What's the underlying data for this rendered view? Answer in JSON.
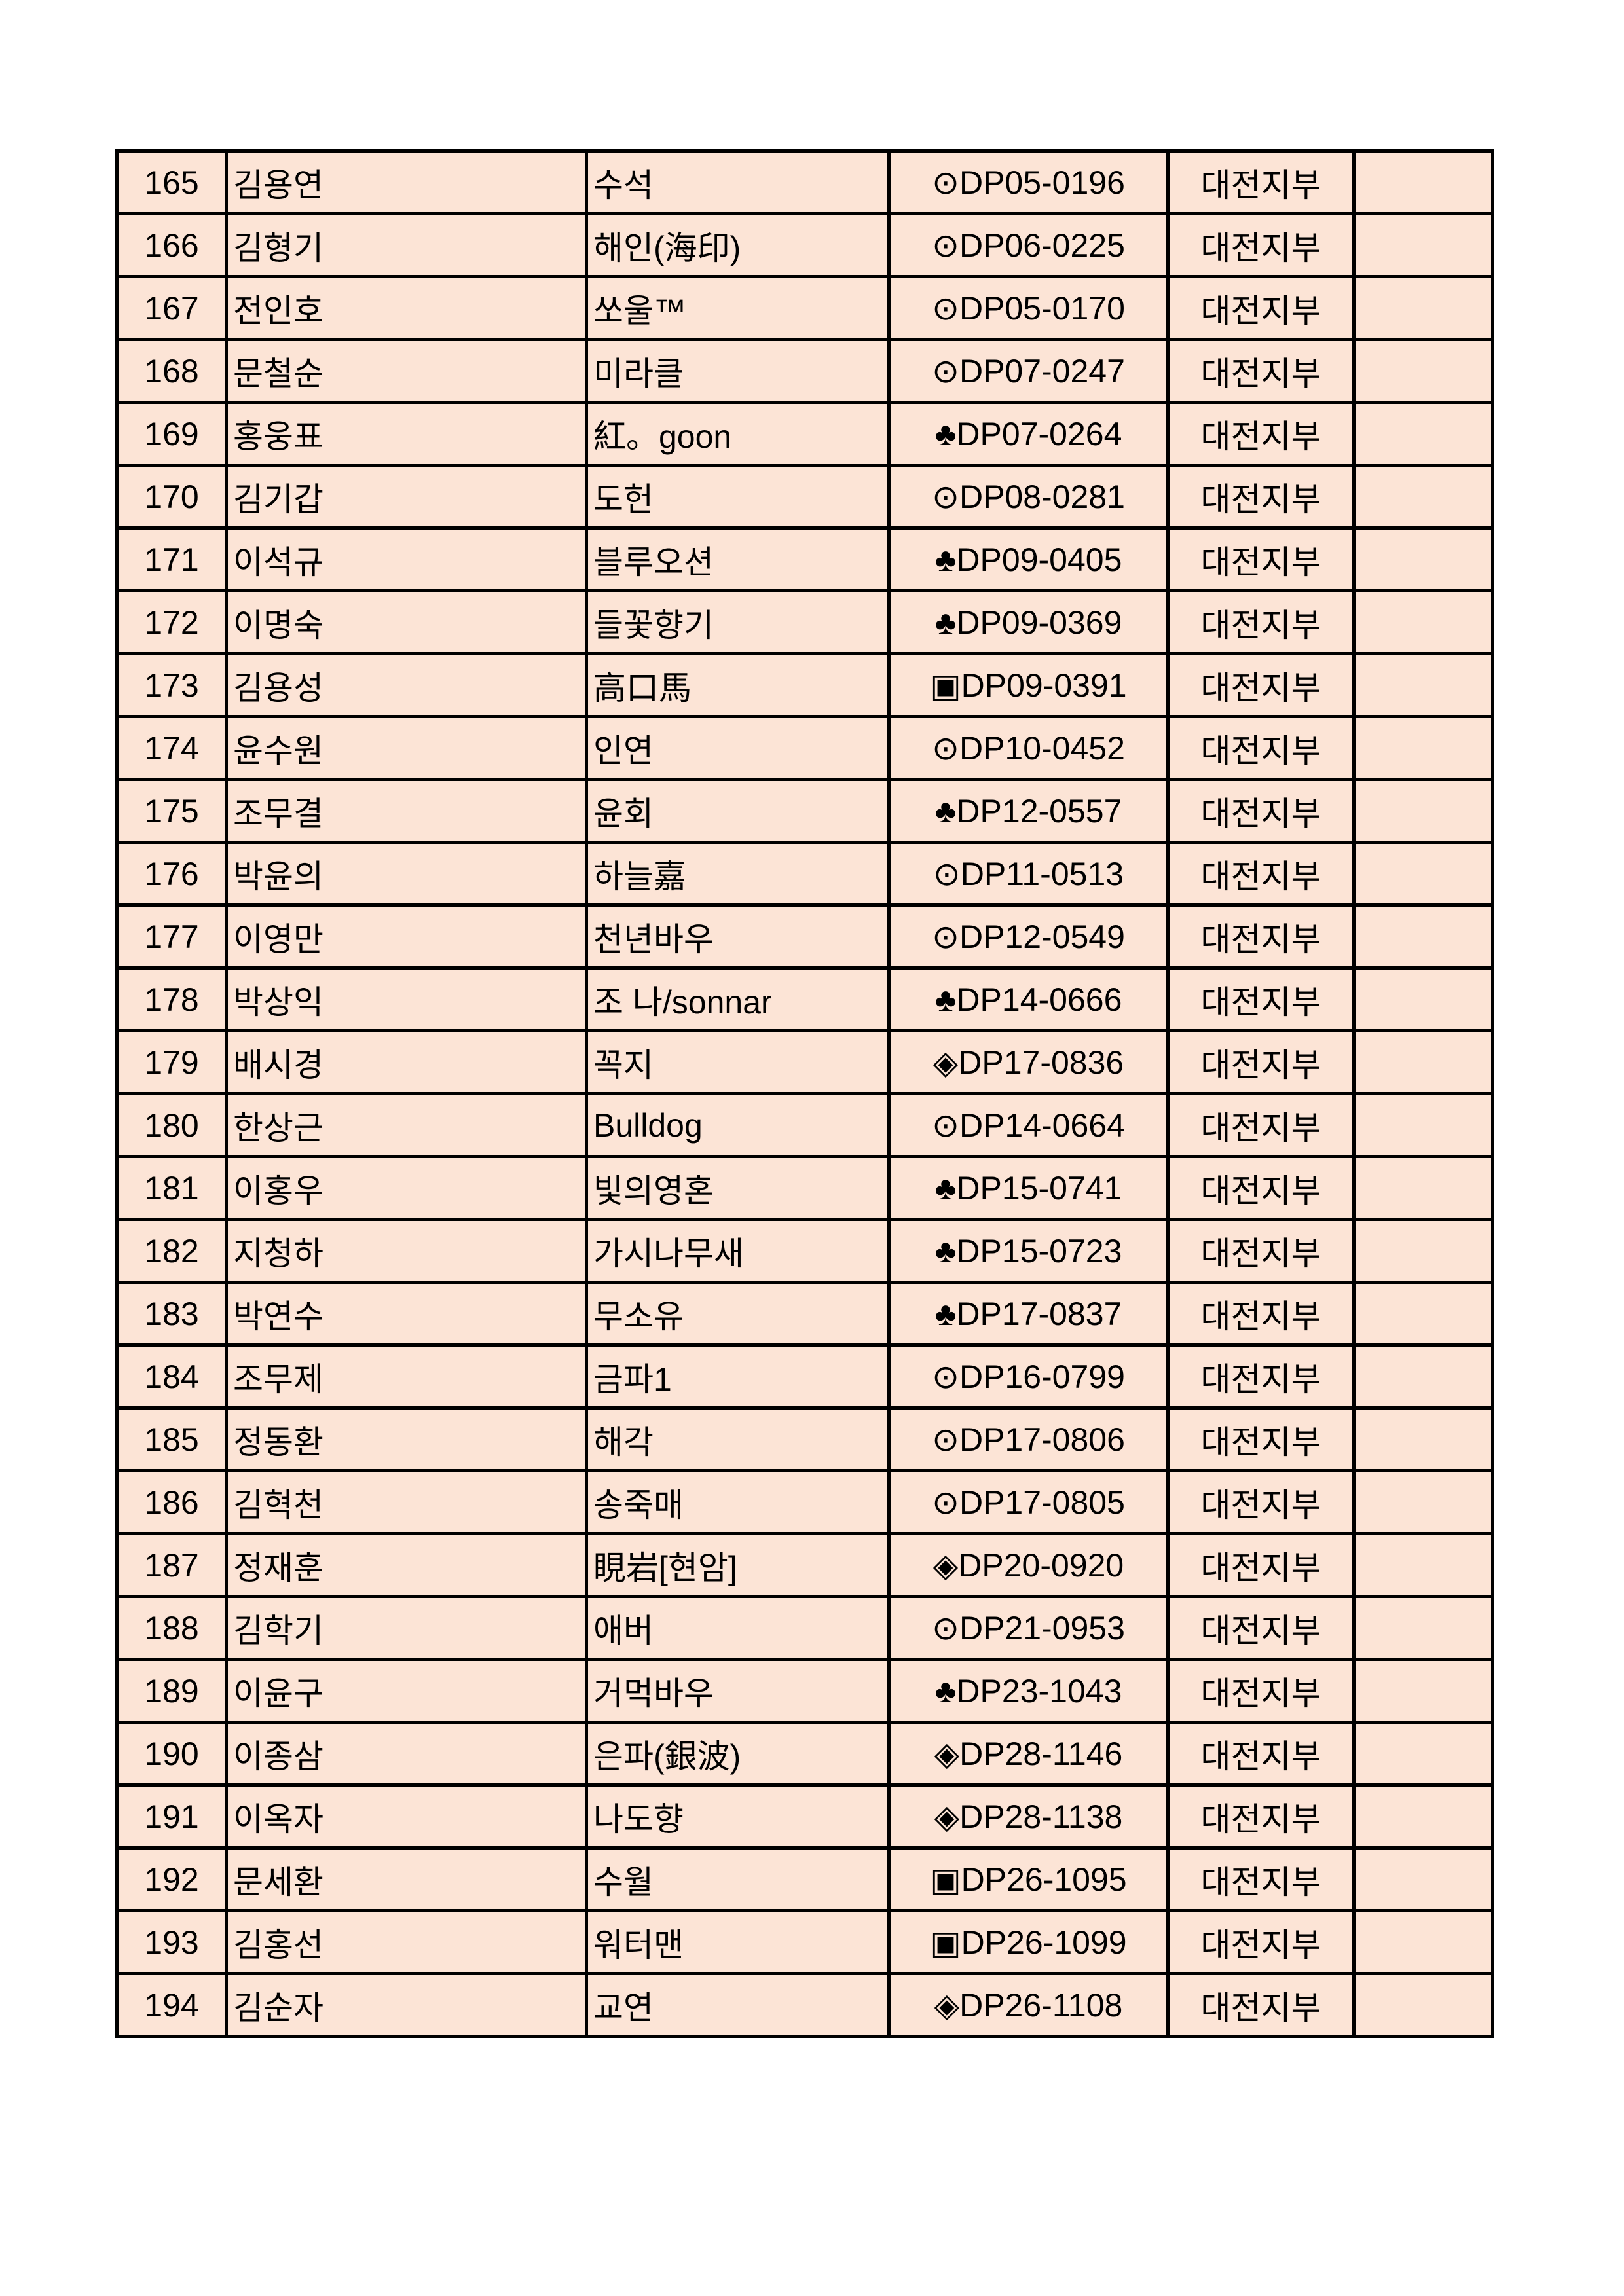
{
  "colors": {
    "cell_background": "#FCE4D6",
    "border": "#000000"
  },
  "rows": [
    {
      "no": "165",
      "name": "김용연",
      "nickname": "수석",
      "code": "⊙DP05-0196",
      "branch": "대전지부",
      "note": ""
    },
    {
      "no": "166",
      "name": "김형기",
      "nickname": "해인(海印)",
      "code": "⊙DP06-0225",
      "branch": "대전지부",
      "note": ""
    },
    {
      "no": "167",
      "name": "전인호",
      "nickname": "쏘울™",
      "code": "⊙DP05-0170",
      "branch": "대전지부",
      "note": ""
    },
    {
      "no": "168",
      "name": "문철순",
      "nickname": "미라클",
      "code": "⊙DP07-0247",
      "branch": "대전지부",
      "note": ""
    },
    {
      "no": "169",
      "name": "홍웅표",
      "nickname": "紅。goon",
      "code": "♣DP07-0264",
      "branch": "대전지부",
      "note": ""
    },
    {
      "no": "170",
      "name": "김기갑",
      "nickname": "도헌",
      "code": "⊙DP08-0281",
      "branch": "대전지부",
      "note": ""
    },
    {
      "no": "171",
      "name": "이석규",
      "nickname": "블루오션",
      "code": "♣DP09-0405",
      "branch": "대전지부",
      "note": ""
    },
    {
      "no": "172",
      "name": "이명숙",
      "nickname": "들꽃향기",
      "code": "♣DP09-0369",
      "branch": "대전지부",
      "note": ""
    },
    {
      "no": "173",
      "name": "김용성",
      "nickname": "高口馬",
      "code": "▣DP09-0391",
      "branch": "대전지부",
      "note": ""
    },
    {
      "no": "174",
      "name": "윤수원",
      "nickname": "인연",
      "code": "⊙DP10-0452",
      "branch": "대전지부",
      "note": ""
    },
    {
      "no": "175",
      "name": "조무결",
      "nickname": "윤회",
      "code": "♣DP12-0557",
      "branch": "대전지부",
      "note": ""
    },
    {
      "no": "176",
      "name": "박윤의",
      "nickname": "하늘嘉",
      "code": "⊙DP11-0513",
      "branch": "대전지부",
      "note": ""
    },
    {
      "no": "177",
      "name": "이영만",
      "nickname": "천년바우",
      "code": "⊙DP12-0549",
      "branch": "대전지부",
      "note": ""
    },
    {
      "no": "178",
      "name": "박상익",
      "nickname": "조 나/sonnar",
      "code": "♣DP14-0666",
      "branch": "대전지부",
      "note": ""
    },
    {
      "no": "179",
      "name": "배시경",
      "nickname": "꼭지",
      "code": "◈DP17-0836",
      "branch": "대전지부",
      "note": ""
    },
    {
      "no": "180",
      "name": "한상근",
      "nickname": "Bulldog",
      "code": "⊙DP14-0664",
      "branch": "대전지부",
      "note": ""
    },
    {
      "no": "181",
      "name": "이홍우",
      "nickname": "빛의영혼",
      "code": "♣DP15-0741",
      "branch": "대전지부",
      "note": ""
    },
    {
      "no": "182",
      "name": "지청하",
      "nickname": "가시나무새",
      "code": "♣DP15-0723",
      "branch": "대전지부",
      "note": ""
    },
    {
      "no": "183",
      "name": "박연수",
      "nickname": "무소유",
      "code": "♣DP17-0837",
      "branch": "대전지부",
      "note": ""
    },
    {
      "no": "184",
      "name": "조무제",
      "nickname": "금파1",
      "code": "⊙DP16-0799",
      "branch": "대전지부",
      "note": ""
    },
    {
      "no": "185",
      "name": "정동환",
      "nickname": "해각",
      "code": "⊙DP17-0806",
      "branch": "대전지부",
      "note": ""
    },
    {
      "no": "186",
      "name": "김혁천",
      "nickname": "송죽매",
      "code": "⊙DP17-0805",
      "branch": "대전지부",
      "note": ""
    },
    {
      "no": "187",
      "name": "정재훈",
      "nickname": "睍岩[현암]",
      "code": "◈DP20-0920",
      "branch": "대전지부",
      "note": ""
    },
    {
      "no": "188",
      "name": "김학기",
      "nickname": "애버",
      "code": "⊙DP21-0953",
      "branch": "대전지부",
      "note": ""
    },
    {
      "no": "189",
      "name": "이윤구",
      "nickname": "거먹바우",
      "code": "♣DP23-1043",
      "branch": "대전지부",
      "note": ""
    },
    {
      "no": "190",
      "name": "이종삼",
      "nickname": "은파(銀波)",
      "code": "◈DP28-1146",
      "branch": "대전지부",
      "note": ""
    },
    {
      "no": "191",
      "name": "이옥자",
      "nickname": "나도향",
      "code": "◈DP28-1138",
      "branch": "대전지부",
      "note": ""
    },
    {
      "no": "192",
      "name": "문세환",
      "nickname": "수월",
      "code": "▣DP26-1095",
      "branch": "대전지부",
      "note": ""
    },
    {
      "no": "193",
      "name": "김홍선",
      "nickname": "워터맨",
      "code": "▣DP26-1099",
      "branch": "대전지부",
      "note": ""
    },
    {
      "no": "194",
      "name": "김순자",
      "nickname": "교연",
      "code": "◈DP26-1108",
      "branch": "대전지부",
      "note": ""
    }
  ]
}
